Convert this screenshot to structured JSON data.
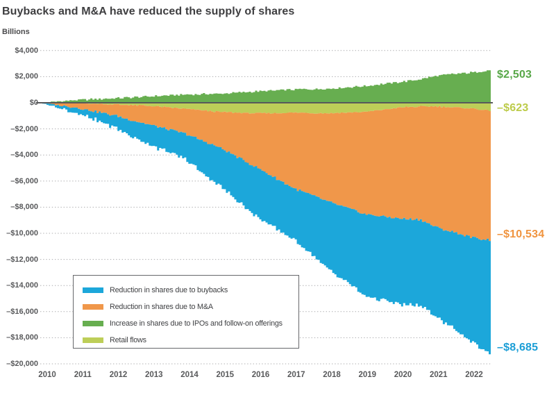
{
  "title": "Buybacks and M&A have reduced the supply of shares",
  "y_axis": {
    "units_label": "Billions",
    "ticks": [
      {
        "label": "$4,000",
        "value": 4000
      },
      {
        "label": "$2,000",
        "value": 2000
      },
      {
        "label": "$0",
        "value": 0
      },
      {
        "label": "–$2,000",
        "value": -2000
      },
      {
        "label": "–$4,000",
        "value": -4000
      },
      {
        "label": "–$6,000",
        "value": -6000
      },
      {
        "label": "–$8,000",
        "value": -8000
      },
      {
        "label": "–$10,000",
        "value": -10000
      },
      {
        "label": "–$12,000",
        "value": -12000
      },
      {
        "label": "–$14,000",
        "value": -14000
      },
      {
        "label": "–$16,000",
        "value": -16000
      },
      {
        "label": "–$18,000",
        "value": -18000
      },
      {
        "label": "–$20,000",
        "value": -20000
      }
    ]
  },
  "x_axis": {
    "ticks": [
      "2010",
      "2011",
      "2012",
      "2013",
      "2014",
      "2015",
      "2016",
      "2017",
      "2018",
      "2019",
      "2020",
      "2021",
      "2022"
    ]
  },
  "legend": {
    "items": [
      {
        "id": "buybacks",
        "label": "Reduction in shares due to buybacks",
        "color": "#1CA7DA"
      },
      {
        "id": "mna",
        "label": "Reduction in shares due to M&A",
        "color": "#F0974A"
      },
      {
        "id": "ipos",
        "label": "Increase in shares due to IPOs and follow-on offerings",
        "color": "#67AE50"
      },
      {
        "id": "retail",
        "label": "Retail flows",
        "color": "#BDCE58"
      }
    ]
  },
  "end_labels": [
    {
      "id": "ipos",
      "text": "$2,503",
      "color": "#58A748"
    },
    {
      "id": "retail",
      "text": "–$623",
      "color": "#BCCB49"
    },
    {
      "id": "mna",
      "text": "–$10,534",
      "color": "#F0943F"
    },
    {
      "id": "buybacks",
      "text": "–$8,685",
      "color": "#1B9ED6"
    }
  ],
  "chart_data": {
    "type": "area",
    "stacked": true,
    "units": "$ billions (cumulative since 2010)",
    "ylim": [
      -20000,
      4000
    ],
    "grid": "dotted horizontal",
    "legend_position": "inside lower-left box",
    "x": [
      2010,
      2011,
      2012,
      2013,
      2014,
      2015,
      2016,
      2017,
      2018,
      2019,
      2020,
      2020.5,
      2021,
      2022,
      2022.45
    ],
    "series": [
      {
        "id": "buybacks",
        "name": "Reduction in shares due to buybacks",
        "color": "#1CA7DA",
        "end_value": -8685,
        "values": [
          0,
          -389,
          -885,
          -1510,
          -1957,
          -2970,
          -3787,
          -3911,
          -5242,
          -6262,
          -6592,
          -6570,
          -6896,
          -8100,
          -8685
        ]
      },
      {
        "id": "mna",
        "name": "Reduction in shares due to M&A",
        "color": "#F0974A",
        "end_value": -10534,
        "values": [
          0,
          -373,
          -944,
          -1653,
          -2363,
          -3483,
          -4976,
          -6542,
          -7611,
          -8549,
          -8891,
          -8950,
          -9600,
          -10350,
          -10534
        ]
      },
      {
        "id": "ipos",
        "name": "Increase in shares due to IPOs and follow-on offerings",
        "color": "#67AE50",
        "end_value": 2503,
        "values": [
          0,
          210,
          336,
          480,
          624,
          700,
          869,
          1013,
          1080,
          1290,
          1600,
          1800,
          2088,
          2332,
          2503
        ]
      },
      {
        "id": "retail",
        "name": "Retail flows",
        "color": "#BDCE58",
        "end_value": -623,
        "values": [
          0,
          -30,
          -120,
          -230,
          -464,
          -709,
          -816,
          -763,
          -800,
          -700,
          -350,
          -300,
          -290,
          -450,
          -623
        ]
      }
    ]
  }
}
